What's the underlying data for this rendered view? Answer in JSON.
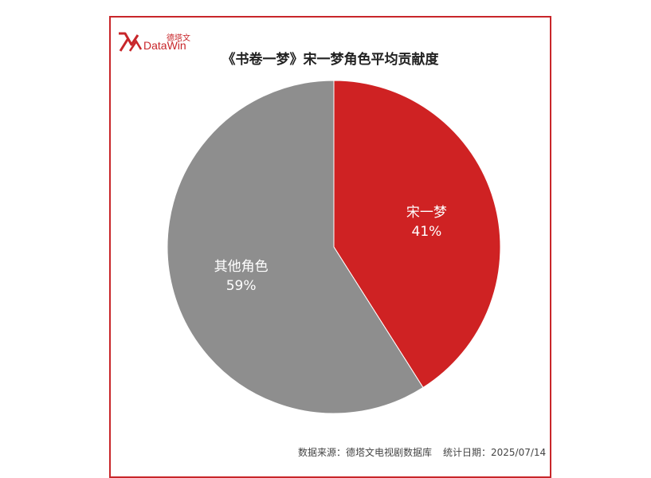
{
  "logo": {
    "cn": "德塔文",
    "en": "DataWin"
  },
  "colors": {
    "accent": "#c8262a",
    "other": "#8e8e8e"
  },
  "chart_data": {
    "type": "pie",
    "title": "《书卷一梦》宋一梦角色平均贡献度",
    "slices": [
      {
        "label": "宋一梦",
        "value": 41,
        "value_label": "41%",
        "color": "#cf2223"
      },
      {
        "label": "其他角色",
        "value": 59,
        "value_label": "59%",
        "color": "#8e8e8e"
      }
    ],
    "legend": "none",
    "start": "top",
    "direction": "clockwise"
  },
  "footer": {
    "source": "数据来源：德塔文电视剧数据库",
    "date": "统计日期：2025/07/14"
  }
}
